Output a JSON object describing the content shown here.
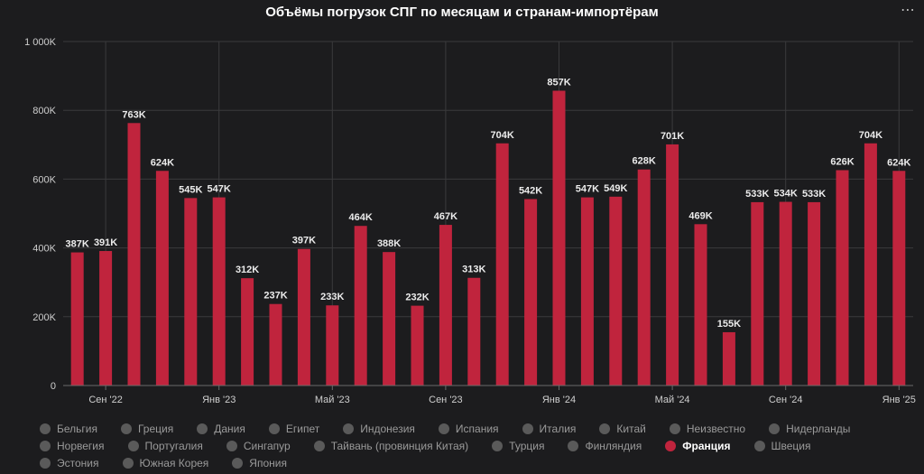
{
  "chart": {
    "title": "Объёмы погрузок СПГ по месяцам и странам-импортёрам",
    "menu_icon": "ellipsis-icon",
    "menu_label": "⋯"
  },
  "colors": {
    "bar": "#c0243d",
    "grid": "#3a3a3c",
    "legend_active_dot": "#c0243d",
    "legend_inactive_dot": "#5a5a5a"
  },
  "chart_data": {
    "type": "bar",
    "title": "Объёмы погрузок СПГ по месяцам и странам-импортёрам",
    "series_name": "Франция",
    "ylim": [
      0,
      1000000
    ],
    "y_ticks": [
      {
        "value": 0,
        "label": "0"
      },
      {
        "value": 200000,
        "label": "200K"
      },
      {
        "value": 400000,
        "label": "400K"
      },
      {
        "value": 600000,
        "label": "600K"
      },
      {
        "value": 800000,
        "label": "800K"
      },
      {
        "value": 1000000,
        "label": "1 000K"
      }
    ],
    "values": [
      387000,
      391000,
      763000,
      624000,
      545000,
      547000,
      312000,
      237000,
      397000,
      233000,
      464000,
      388000,
      232000,
      467000,
      313000,
      704000,
      542000,
      857000,
      547000,
      549000,
      628000,
      701000,
      469000,
      155000,
      533000,
      534000,
      533000,
      626000,
      704000,
      624000
    ],
    "labels": [
      "387K",
      "391K",
      "763K",
      "624K",
      "545K",
      "547K",
      "312K",
      "237K",
      "397K",
      "233K",
      "464K",
      "388K",
      "232K",
      "467K",
      "313K",
      "704K",
      "542K",
      "857K",
      "547K",
      "549K",
      "628K",
      "701K",
      "469K",
      "155K",
      "533K",
      "534K",
      "533K",
      "626K",
      "704K",
      "624K"
    ],
    "x_ticks": [
      {
        "index": 1,
        "label": "Сен '22"
      },
      {
        "index": 5,
        "label": "Янв '23"
      },
      {
        "index": 9,
        "label": "Май '23"
      },
      {
        "index": 13,
        "label": "Сен '23"
      },
      {
        "index": 17,
        "label": "Янв '24"
      },
      {
        "index": 21,
        "label": "Май '24"
      },
      {
        "index": 25,
        "label": "Сен '24"
      },
      {
        "index": 29,
        "label": "Янв '25"
      }
    ],
    "grid": true,
    "legend_position": "bottom"
  },
  "legend": {
    "items": [
      {
        "label": "Бельгия",
        "active": false
      },
      {
        "label": "Греция",
        "active": false
      },
      {
        "label": "Дания",
        "active": false
      },
      {
        "label": "Египет",
        "active": false
      },
      {
        "label": "Индонезия",
        "active": false
      },
      {
        "label": "Испания",
        "active": false
      },
      {
        "label": "Италия",
        "active": false
      },
      {
        "label": "Китай",
        "active": false
      },
      {
        "label": "Неизвестно",
        "active": false
      },
      {
        "label": "Нидерланды",
        "active": false
      },
      {
        "label": "Норвегия",
        "active": false
      },
      {
        "label": "Португалия",
        "active": false
      },
      {
        "label": "Сингапур",
        "active": false
      },
      {
        "label": "Тайвань (провинция Китая)",
        "active": false
      },
      {
        "label": "Турция",
        "active": false
      },
      {
        "label": "Финляндия",
        "active": false
      },
      {
        "label": "Франция",
        "active": true
      },
      {
        "label": "Швеция",
        "active": false
      },
      {
        "label": "Эстония",
        "active": false
      },
      {
        "label": "Южная Корея",
        "active": false
      },
      {
        "label": "Япония",
        "active": false
      }
    ]
  }
}
